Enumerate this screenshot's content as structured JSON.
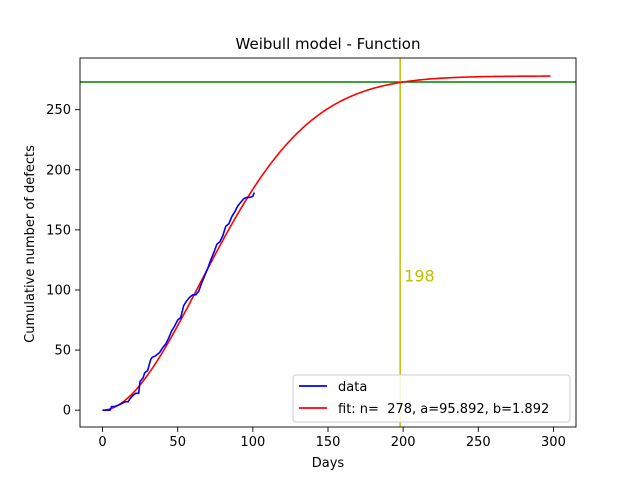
{
  "chart_data": {
    "type": "line",
    "title": "Weibull model - Function",
    "xlabel": "Days",
    "ylabel": "Cumulative number of defects",
    "xlim": [
      -15,
      315
    ],
    "ylim": [
      -14,
      293
    ],
    "xticks": [
      0,
      50,
      100,
      150,
      200,
      250,
      300
    ],
    "yticks": [
      0,
      50,
      100,
      150,
      200,
      250
    ],
    "legend_position": "lower-right",
    "grid": false,
    "series": [
      {
        "name": "data",
        "color": "#0000ff",
        "x": [
          0,
          5,
          6,
          8,
          10,
          12,
          15,
          17,
          18,
          20,
          22,
          24,
          25,
          27,
          28,
          30,
          32,
          33,
          35,
          36,
          38,
          40,
          42,
          44,
          46,
          48,
          50,
          52,
          54,
          56,
          58,
          60,
          62,
          64,
          66,
          68,
          70,
          72,
          74,
          76,
          78,
          80,
          82,
          84,
          86,
          88,
          90,
          92,
          94,
          96,
          98,
          100,
          101
        ],
        "y": [
          0,
          0,
          3,
          3,
          4,
          5,
          7,
          7,
          9,
          12,
          14,
          14,
          24,
          27,
          31,
          33,
          42,
          44,
          45,
          46,
          48,
          52,
          55,
          60,
          66,
          70,
          75,
          77,
          87,
          91,
          94,
          96,
          96,
          99,
          106,
          112,
          118,
          125,
          131,
          138,
          140,
          145,
          153,
          155,
          161,
          165,
          170,
          173,
          176,
          177,
          177,
          178,
          181
        ]
      },
      {
        "name": "fit: n=  278, a=95.892, b=1.892",
        "color": "#ff0000",
        "function": "weibull",
        "n": 278,
        "a": 95.892,
        "b": 1.892,
        "x_range": [
          0,
          298
        ]
      }
    ],
    "reference_lines": [
      {
        "orientation": "horizontal",
        "value": 273,
        "color": "#008000"
      },
      {
        "orientation": "vertical",
        "value": 198,
        "color": "#bfbf00"
      }
    ],
    "annotations": [
      {
        "text": "198",
        "x": 200,
        "y": 112,
        "color": "#bfbf00"
      }
    ]
  }
}
